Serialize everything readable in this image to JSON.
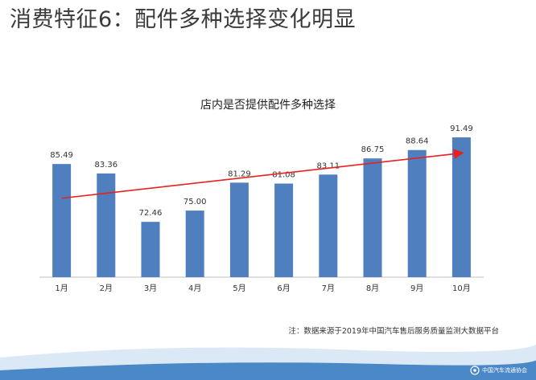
{
  "slide": {
    "title": "消费特征6：配件多种选择变化明显",
    "footnote": "注：数据来源于2019年中国汽车售后服务质量监测大数据平台",
    "logo_text": "中国汽车流通协会"
  },
  "colors": {
    "bar": "#4f7fbe",
    "trend": "#e8211f",
    "footer_light": "#dbe8f5",
    "footer_dark": "#4a88c7"
  },
  "chart_data": {
    "type": "bar",
    "title": "店内是否提供配件多种选择",
    "categories": [
      "1月",
      "2月",
      "3月",
      "4月",
      "5月",
      "6月",
      "7月",
      "8月",
      "9月",
      "10月"
    ],
    "values": [
      85.49,
      83.36,
      72.46,
      75.0,
      81.29,
      81.08,
      83.11,
      86.75,
      88.64,
      91.49
    ],
    "value_labels": [
      "85.49",
      "83.36",
      "72.46",
      "75.00",
      "81.29",
      "81.08",
      "83.11",
      "86.75",
      "88.64",
      "91.49"
    ],
    "ylim": [
      60,
      95
    ],
    "trendline": "linear",
    "grid": false,
    "legend": "none"
  }
}
